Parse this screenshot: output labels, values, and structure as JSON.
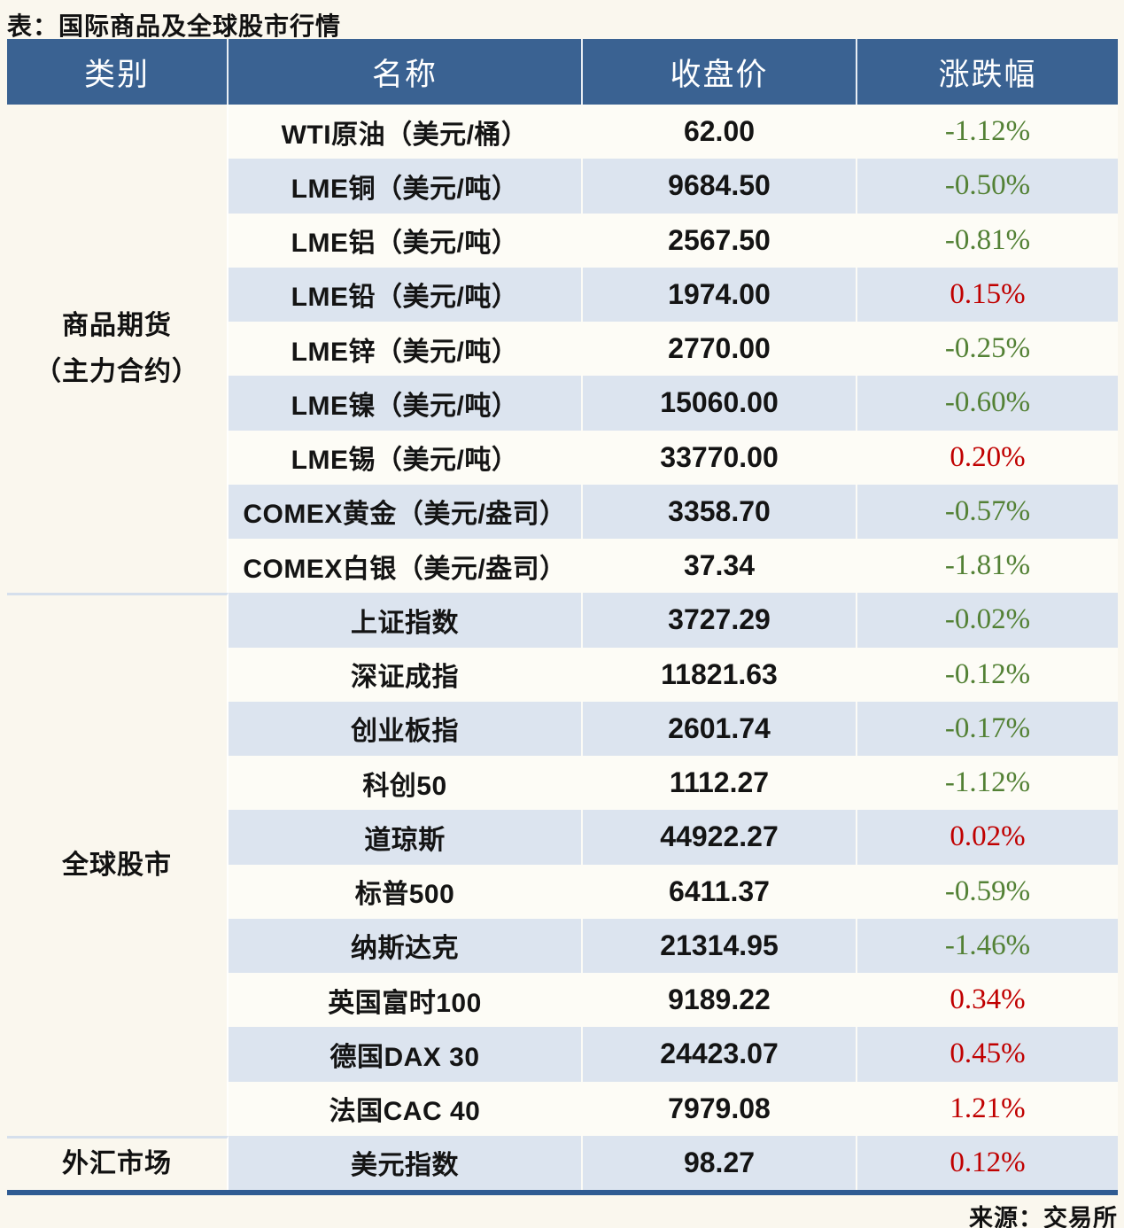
{
  "page": {
    "title": "表：国际商品及全球股市行情",
    "source": "来源：交易所"
  },
  "colors": {
    "page_bg": "#FAF7EE",
    "header_bg": "#3A6292",
    "header_text": "#FFFFFF",
    "stripe_blue": "#DCE4EF",
    "row_white": "#FDFCF6",
    "group_separator": "#D5DFEC",
    "bottom_border": "#2F5B92",
    "up_red": "#C00000",
    "down_green": "#538135"
  },
  "chart_data": {
    "type": "table",
    "title": "表：国际商品及全球股市行情",
    "columns": [
      "类别",
      "名称",
      "收盘价",
      "涨跌幅"
    ],
    "color_convention": "red = 上涨(up), green = 下跌(down)",
    "source": "来源：交易所",
    "groups": [
      {
        "category_lines": [
          "商品期货",
          "（主力合约）"
        ],
        "category": "商品期货（主力合约）",
        "rows": [
          {
            "name": "WTI原油（美元/桶）",
            "close": "62.00",
            "change": "-1.12%",
            "direction": "down"
          },
          {
            "name": "LME铜（美元/吨）",
            "close": "9684.50",
            "change": "-0.50%",
            "direction": "down"
          },
          {
            "name": "LME铝（美元/吨）",
            "close": "2567.50",
            "change": "-0.81%",
            "direction": "down"
          },
          {
            "name": "LME铅（美元/吨）",
            "close": "1974.00",
            "change": "0.15%",
            "direction": "up"
          },
          {
            "name": "LME锌（美元/吨）",
            "close": "2770.00",
            "change": "-0.25%",
            "direction": "down"
          },
          {
            "name": "LME镍（美元/吨）",
            "close": "15060.00",
            "change": "-0.60%",
            "direction": "down"
          },
          {
            "name": "LME锡（美元/吨）",
            "close": "33770.00",
            "change": "0.20%",
            "direction": "up"
          },
          {
            "name": "COMEX黄金（美元/盎司）",
            "close": "3358.70",
            "change": "-0.57%",
            "direction": "down"
          },
          {
            "name": "COMEX白银（美元/盎司）",
            "close": "37.34",
            "change": "-1.81%",
            "direction": "down"
          }
        ]
      },
      {
        "category_lines": [
          "全球股市"
        ],
        "category": "全球股市",
        "rows": [
          {
            "name": "上证指数",
            "close": "3727.29",
            "change": "-0.02%",
            "direction": "down"
          },
          {
            "name": "深证成指",
            "close": "11821.63",
            "change": "-0.12%",
            "direction": "down"
          },
          {
            "name": "创业板指",
            "close": "2601.74",
            "change": "-0.17%",
            "direction": "down"
          },
          {
            "name": "科创50",
            "close": "1112.27",
            "change": "-1.12%",
            "direction": "down"
          },
          {
            "name": "道琼斯",
            "close": "44922.27",
            "change": "0.02%",
            "direction": "up"
          },
          {
            "name": "标普500",
            "close": "6411.37",
            "change": "-0.59%",
            "direction": "down"
          },
          {
            "name": "纳斯达克",
            "close": "21314.95",
            "change": "-1.46%",
            "direction": "down"
          },
          {
            "name": "英国富时100",
            "close": "9189.22",
            "change": "0.34%",
            "direction": "up"
          },
          {
            "name": "德国DAX 30",
            "close": "24423.07",
            "change": "0.45%",
            "direction": "up"
          },
          {
            "name": "法国CAC 40",
            "close": "7979.08",
            "change": "1.21%",
            "direction": "up"
          }
        ]
      },
      {
        "category_lines": [
          "外汇市场"
        ],
        "category": "外汇市场",
        "rows": [
          {
            "name": "美元指数",
            "close": "98.27",
            "change": "0.12%",
            "direction": "up"
          }
        ]
      }
    ]
  }
}
